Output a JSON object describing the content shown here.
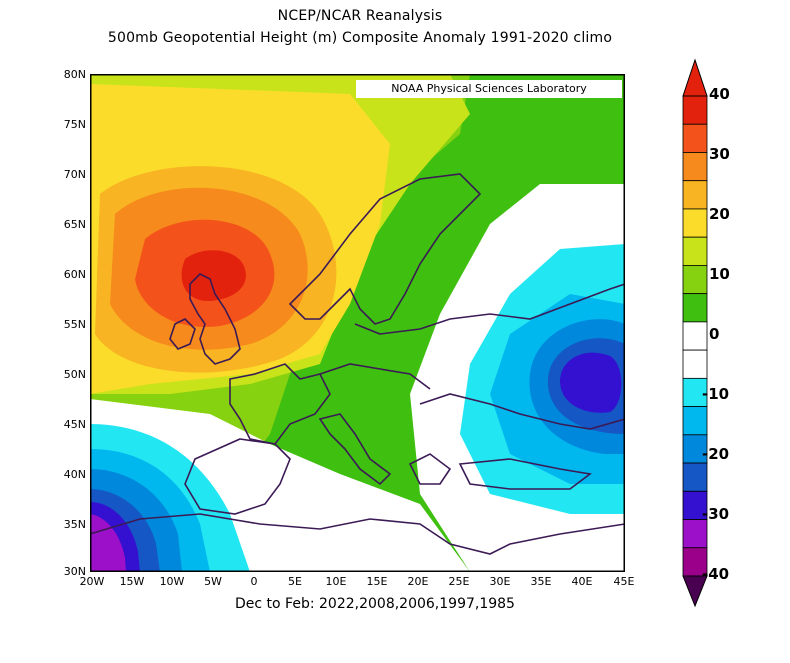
{
  "header": {
    "title_line1": "NCEP/NCAR Reanalysis",
    "title_line2": "500mb Geopotential Height (m) Composite Anomaly 1991-2020 climo"
  },
  "credit": "NOAA Physical Sciences Laboratory",
  "footer": "Dec to Feb: 2022,2008,2006,1997,1985",
  "axes": {
    "lat_ticks": [
      "80N",
      "75N",
      "70N",
      "65N",
      "60N",
      "55N",
      "50N",
      "45N",
      "40N",
      "35N",
      "30N"
    ],
    "lon_ticks": [
      "20W",
      "15W",
      "10W",
      "5W",
      "0",
      "5E",
      "10E",
      "15E",
      "20E",
      "25E",
      "30E",
      "35E",
      "40E",
      "45E"
    ]
  },
  "colorbar": {
    "labels": [
      "40",
      "30",
      "20",
      "10",
      "0",
      "-10",
      "-20",
      "-30",
      "-40"
    ],
    "colors": [
      "#8a0000",
      "#e3220e",
      "#f3531b",
      "#f68a1c",
      "#f8b422",
      "#fbdc2a",
      "#c9e31b",
      "#86d210",
      "#3fbf10",
      "#ffffff",
      "#ffffff",
      "#22e6f2",
      "#00b7ee",
      "#0089dc",
      "#1557c4",
      "#3410d0",
      "#9b10c8",
      "#9a008a",
      "#6a0070"
    ],
    "tip_top": "#e3220e",
    "tip_bottom": "#4a0050"
  },
  "chart_data": {
    "type": "heatmap",
    "title": "NCEP/NCAR Reanalysis 500mb Geopotential Height (m) Composite Anomaly 1991-2020 climo",
    "xlabel": "",
    "ylabel": "",
    "xlim": [
      -20,
      45
    ],
    "ylim": [
      30,
      80
    ],
    "contour_interval": 5,
    "features": [
      {
        "type": "max",
        "lon": -5,
        "lat": 60,
        "value": 35
      },
      {
        "type": "min",
        "lon": 38,
        "lat": 50,
        "value": -25
      },
      {
        "type": "min",
        "lon": -18,
        "lat": 33,
        "value": -30
      }
    ]
  }
}
